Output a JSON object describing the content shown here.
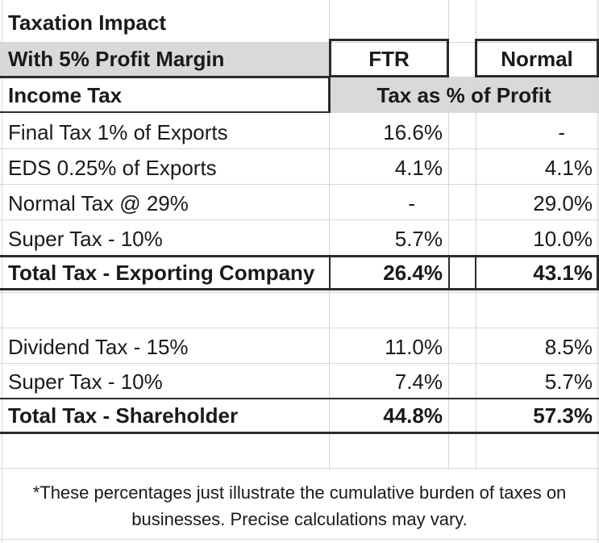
{
  "title": "Taxation Impact",
  "subtitle": "With 5% Profit Margin",
  "columns": {
    "ftr": "FTR",
    "normal": "Normal"
  },
  "section_header": {
    "label": "Income Tax",
    "value_header": "Tax as % of Profit"
  },
  "exporting_rows": [
    {
      "label": "Final Tax 1% of Exports",
      "ftr": "16.6%",
      "normal": "-"
    },
    {
      "label": "EDS 0.25% of Exports",
      "ftr": "4.1%",
      "normal": "4.1%"
    },
    {
      "label": "Normal Tax @ 29%",
      "ftr": "-",
      "normal": "29.0%"
    },
    {
      "label": "Super Tax - 10%",
      "ftr": "5.7%",
      "normal": "10.0%"
    }
  ],
  "exporting_total": {
    "label": "Total Tax - Exporting Company",
    "ftr": "26.4%",
    "normal": "43.1%"
  },
  "shareholder_rows": [
    {
      "label": "Dividend Tax - 15%",
      "ftr": "11.0%",
      "normal": "8.5%"
    },
    {
      "label": "Super Tax - 10%",
      "ftr": "7.4%",
      "normal": "5.7%"
    }
  ],
  "shareholder_total": {
    "label": "Total Tax - Shareholder",
    "ftr": "44.8%",
    "normal": "57.3%"
  },
  "footnote": "*These percentages just illustrate the cumulative burden of taxes on businesses. Precise calculations may vary."
}
